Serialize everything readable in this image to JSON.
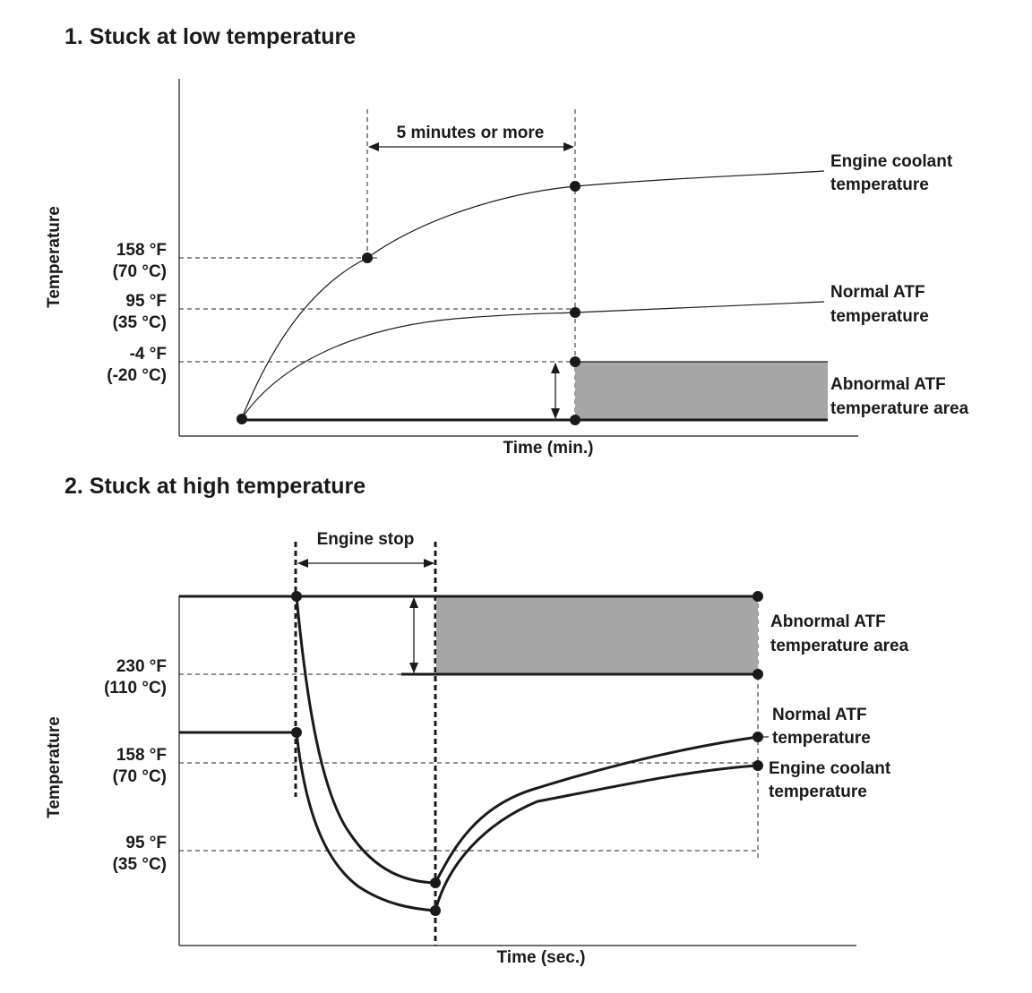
{
  "diagram1": {
    "title": "1. Stuck at low temperature",
    "ylabel": "Temperature",
    "xlabel": "Time (min.)",
    "interval_label": "5 minutes or more",
    "ticks": [
      {
        "f": "158 °F",
        "c": "(70 °C)"
      },
      {
        "f": "95 °F",
        "c": "(35 °C)"
      },
      {
        "f": "-4 °F",
        "c": "(-20 °C)"
      }
    ],
    "curves": {
      "coolant": [
        "Engine coolant",
        "temperature"
      ],
      "normal_atf": [
        "Normal ATF",
        "temperature"
      ],
      "abnormal_area": [
        "Abnormal ATF",
        "temperature area"
      ]
    }
  },
  "diagram2": {
    "title": "2. Stuck at high temperature",
    "ylabel": "Temperature",
    "xlabel": "Time (sec.)",
    "interval_label": "Engine stop",
    "ticks": [
      {
        "f": "230 °F",
        "c": "(110 °C)"
      },
      {
        "f": "158 °F",
        "c": "(70 °C)"
      },
      {
        "f": "95 °F",
        "c": "(35 °C)"
      }
    ],
    "curves": {
      "abnormal_area": [
        "Abnormal ATF",
        "temperature area"
      ],
      "normal_atf": [
        "Normal ATF",
        "temperature"
      ],
      "coolant": [
        "Engine coolant",
        "temperature"
      ]
    }
  },
  "colors": {
    "ink": "#1a1a1a",
    "area_fill": "#a6a6a6",
    "background": "#ffffff"
  }
}
